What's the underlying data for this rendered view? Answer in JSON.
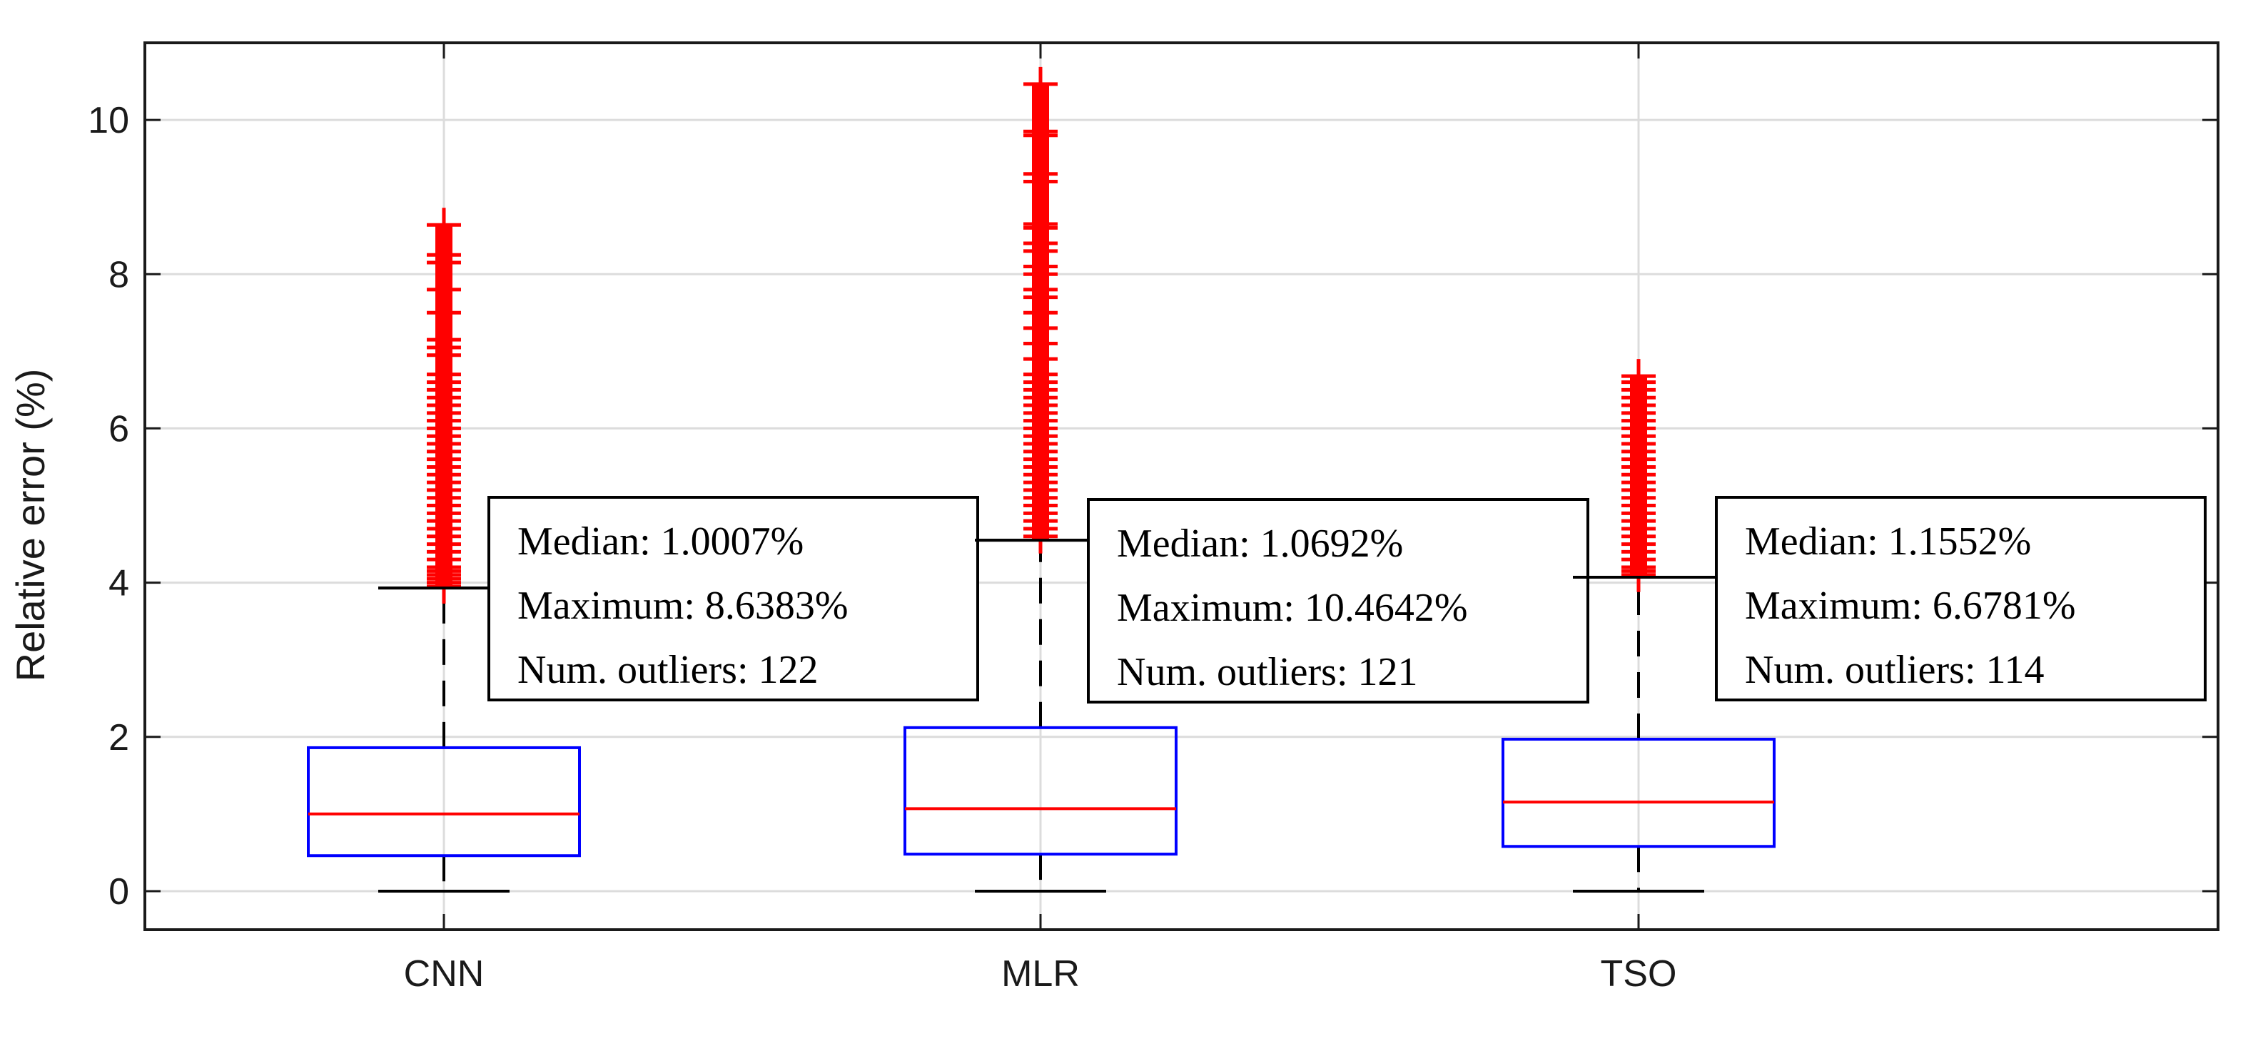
{
  "chart_data": {
    "type": "boxplot",
    "title": "",
    "xlabel": "",
    "ylabel": "Relative error (%)",
    "categories": [
      "CNN",
      "MLR",
      "TSO"
    ],
    "ylim": [
      -0.5,
      11
    ],
    "yticks": [
      0,
      2,
      4,
      6,
      8,
      10
    ],
    "grid": true,
    "series": [
      {
        "name": "CNN",
        "q1": 0.46,
        "median": 1.0007,
        "q3": 1.86,
        "whisker_low": 0.0,
        "whisker_high": 3.93,
        "outlier_range": [
          3.93,
          8.6383
        ],
        "outliers": [
          3.95,
          4.0,
          4.05,
          4.1,
          4.15,
          4.2,
          4.3,
          4.4,
          4.5,
          4.6,
          4.7,
          4.8,
          4.9,
          5.0,
          5.1,
          5.2,
          5.3,
          5.4,
          5.5,
          5.6,
          5.7,
          5.8,
          5.9,
          6.0,
          6.1,
          6.2,
          6.3,
          6.4,
          6.5,
          6.6,
          6.7,
          6.95,
          7.05,
          7.15,
          7.5,
          7.8,
          8.15,
          8.25,
          8.6383
        ]
      },
      {
        "name": "MLR",
        "q1": 0.48,
        "median": 1.0692,
        "q3": 2.12,
        "whisker_low": 0.0,
        "whisker_high": 4.55,
        "outlier_range": [
          4.55,
          10.4642
        ],
        "outliers": [
          4.6,
          4.7,
          4.8,
          4.9,
          5.0,
          5.1,
          5.2,
          5.3,
          5.4,
          5.5,
          5.6,
          5.7,
          5.8,
          5.9,
          6.0,
          6.1,
          6.2,
          6.3,
          6.4,
          6.5,
          6.6,
          6.7,
          6.9,
          7.1,
          7.3,
          7.5,
          7.7,
          7.8,
          8.0,
          8.1,
          8.3,
          8.4,
          8.6,
          8.65,
          9.2,
          9.3,
          9.8,
          9.85,
          10.4642
        ]
      },
      {
        "name": "TSO",
        "q1": 0.58,
        "median": 1.1552,
        "q3": 1.97,
        "whisker_low": 0.0,
        "whisker_high": 4.07,
        "outlier_range": [
          4.07,
          6.6781
        ],
        "outliers": [
          4.1,
          4.15,
          4.2,
          4.3,
          4.4,
          4.5,
          4.6,
          4.7,
          4.8,
          4.9,
          5.0,
          5.1,
          5.2,
          5.3,
          5.4,
          5.5,
          5.6,
          5.7,
          5.8,
          5.9,
          6.0,
          6.1,
          6.2,
          6.3,
          6.4,
          6.5,
          6.6,
          6.6781
        ]
      }
    ],
    "annotations": [
      {
        "target": "CNN",
        "median_label": "Median: 1.0007%",
        "max_label": "Maximum: 8.6383%",
        "outliers_label": "Num. outliers: 122"
      },
      {
        "target": "MLR",
        "median_label": "Median: 1.0692%",
        "max_label": "Maximum: 10.4642%",
        "outliers_label": "Num. outliers: 121"
      },
      {
        "target": "TSO",
        "median_label": "Median: 1.1552%",
        "max_label": "Maximum: 6.6781%",
        "outliers_label": "Num. outliers: 114"
      }
    ],
    "colors": {
      "box": "#0000ff",
      "median": "#ff0000",
      "outlier": "#ff0000",
      "whisker": "#000000",
      "grid": "#dcdcdc",
      "axis": "#1a1a1a"
    }
  }
}
